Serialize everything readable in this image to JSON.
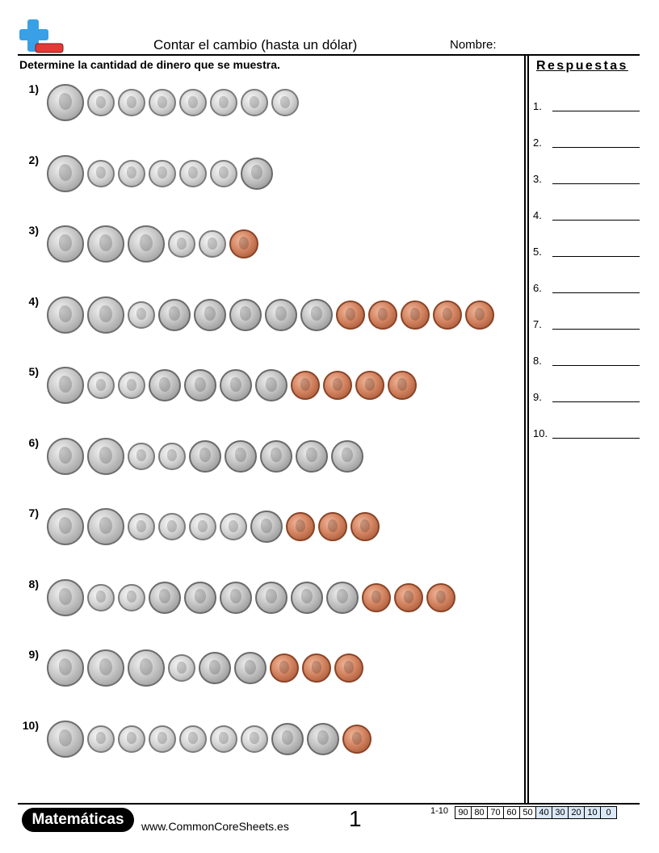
{
  "header": {
    "title": "Contar el cambio (hasta un dólar)",
    "name_label": "Nombre:",
    "logo_icon": "plus-minus-logo-icon",
    "logo_colors": {
      "plus": "#3aa0e6",
      "minus": "#e53935"
    }
  },
  "instructions": "Determine la cantidad de dinero que se muestra.",
  "questions": [
    {
      "label": "1)",
      "coins": [
        "quarter",
        "dime",
        "dime",
        "dime",
        "dime",
        "dime",
        "dime",
        "dime"
      ]
    },
    {
      "label": "2)",
      "coins": [
        "quarter",
        "dime",
        "dime",
        "dime",
        "dime",
        "dime",
        "nickel"
      ]
    },
    {
      "label": "3)",
      "coins": [
        "quarter",
        "quarter",
        "quarter",
        "dime",
        "dime",
        "penny"
      ]
    },
    {
      "label": "4)",
      "coins": [
        "quarter",
        "quarter",
        "dime",
        "nickel",
        "nickel",
        "nickel",
        "nickel",
        "nickel",
        "penny",
        "penny",
        "penny",
        "penny",
        "penny"
      ]
    },
    {
      "label": "5)",
      "coins": [
        "quarter",
        "dime",
        "dime",
        "nickel",
        "nickel",
        "nickel",
        "nickel",
        "penny",
        "penny",
        "penny",
        "penny"
      ]
    },
    {
      "label": "6)",
      "coins": [
        "quarter",
        "quarter",
        "dime",
        "dime",
        "nickel",
        "nickel",
        "nickel",
        "nickel",
        "nickel"
      ]
    },
    {
      "label": "7)",
      "coins": [
        "quarter",
        "quarter",
        "dime",
        "dime",
        "dime",
        "dime",
        "nickel",
        "penny",
        "penny",
        "penny"
      ]
    },
    {
      "label": "8)",
      "coins": [
        "quarter",
        "dime",
        "dime",
        "nickel",
        "nickel",
        "nickel",
        "nickel",
        "nickel",
        "nickel",
        "penny",
        "penny",
        "penny"
      ]
    },
    {
      "label": "9)",
      "coins": [
        "quarter",
        "quarter",
        "quarter",
        "dime",
        "nickel",
        "nickel",
        "penny",
        "penny",
        "penny"
      ]
    },
    {
      "label": "10)",
      "coins": [
        "quarter",
        "dime",
        "dime",
        "dime",
        "dime",
        "dime",
        "dime",
        "nickel",
        "nickel",
        "penny"
      ]
    }
  ],
  "answers": {
    "title": "Respuestas",
    "labels": [
      "1.",
      "2.",
      "3.",
      "4.",
      "5.",
      "6.",
      "7.",
      "8.",
      "9.",
      "10."
    ]
  },
  "footer": {
    "brand": "Matemáticas",
    "site": "www.CommonCoreSheets.es",
    "page": "1",
    "score_range": "1-10",
    "scores": [
      "90",
      "80",
      "70",
      "60",
      "50",
      "40",
      "30",
      "20",
      "10",
      "0"
    ],
    "score_highlight_color": "#dbe8f7"
  }
}
